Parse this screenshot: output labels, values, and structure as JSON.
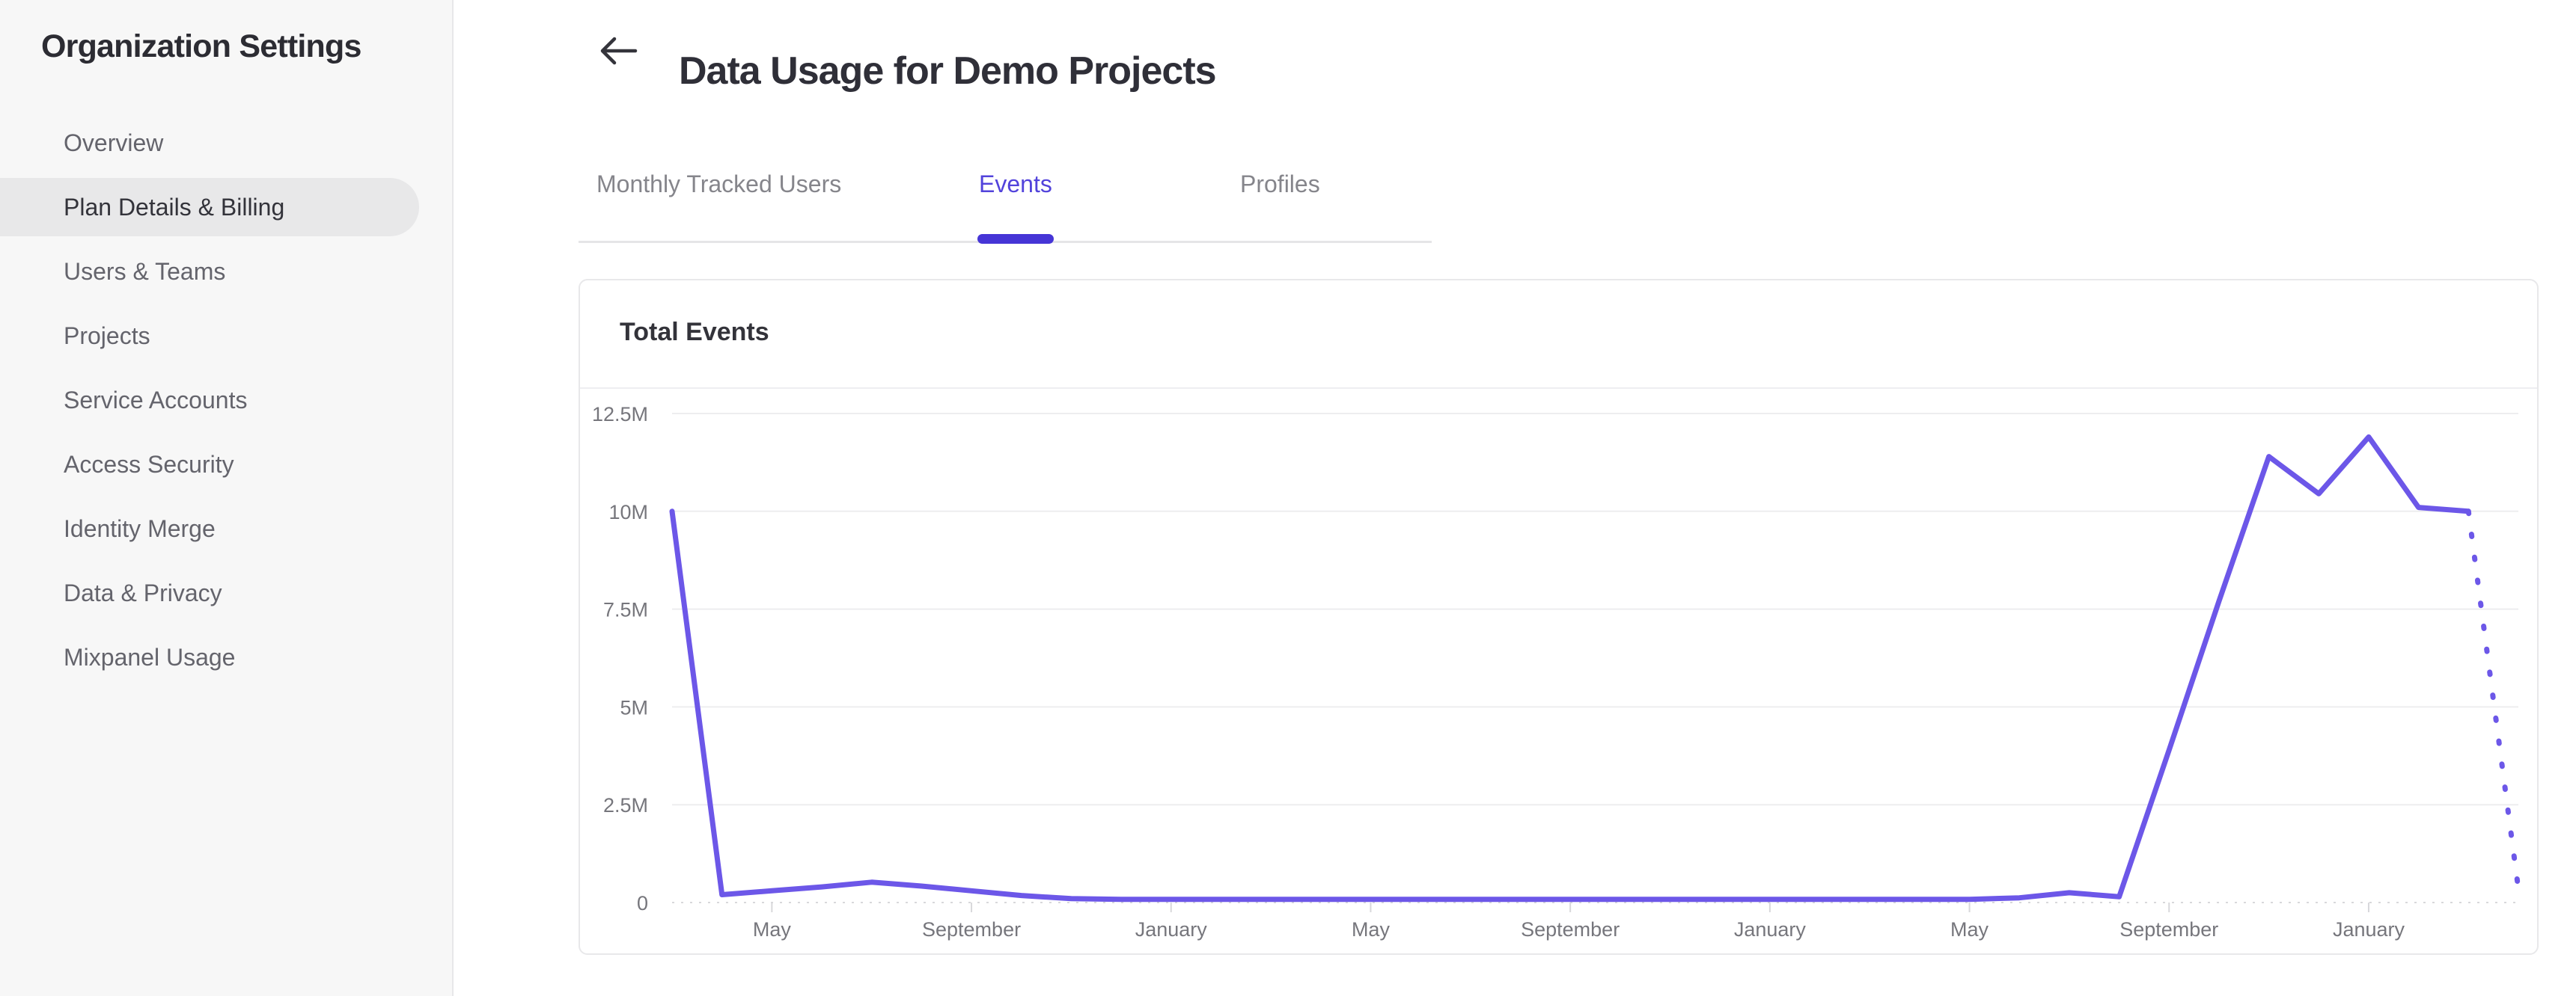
{
  "sidebar": {
    "title": "Organization Settings",
    "items": [
      {
        "label": "Overview",
        "active": false
      },
      {
        "label": "Plan Details & Billing",
        "active": true
      },
      {
        "label": "Users & Teams",
        "active": false
      },
      {
        "label": "Projects",
        "active": false
      },
      {
        "label": "Service Accounts",
        "active": false
      },
      {
        "label": "Access Security",
        "active": false
      },
      {
        "label": "Identity Merge",
        "active": false
      },
      {
        "label": "Data & Privacy",
        "active": false
      },
      {
        "label": "Mixpanel Usage",
        "active": false
      }
    ]
  },
  "header": {
    "title": "Data Usage for Demo Projects",
    "back_icon": "left-arrow-icon"
  },
  "tabs": [
    {
      "label": "Monthly Tracked Users",
      "active": false
    },
    {
      "label": "Events",
      "active": true
    },
    {
      "label": "Profiles",
      "active": false
    }
  ],
  "card": {
    "title": "Total Events"
  },
  "colors": {
    "accent_tab_text": "#5243db",
    "accent_tab_underline": "#4635d6",
    "chart_line": "#6c57e8",
    "gridline": "#ededef",
    "axis_baseline_and_ticks": "#d8d8db",
    "axis_label_text": "#76767c",
    "sidebar_selected_bg": "#e8e8e9",
    "sidebar_bg": "#f7f7f7"
  },
  "chart_data": {
    "type": "line",
    "title": "Total Events",
    "xlabel": "",
    "ylabel": "",
    "ylim_millions": [
      0,
      12.5
    ],
    "grid": true,
    "legend": "none",
    "y_ticks": [
      {
        "value_millions": 0,
        "label": "0"
      },
      {
        "value_millions": 2.5,
        "label": "2.5M"
      },
      {
        "value_millions": 5,
        "label": "5M"
      },
      {
        "value_millions": 7.5,
        "label": "7.5M"
      },
      {
        "value_millions": 10,
        "label": "10M"
      },
      {
        "value_millions": 12.5,
        "label": "12.5M"
      }
    ],
    "x_ticks": [
      {
        "month_index": 2,
        "label": "May"
      },
      {
        "month_index": 6,
        "label": "September"
      },
      {
        "month_index": 10,
        "label": "January"
      },
      {
        "month_index": 14,
        "label": "May"
      },
      {
        "month_index": 18,
        "label": "September"
      },
      {
        "month_index": 22,
        "label": "January"
      },
      {
        "month_index": 26,
        "label": "May"
      },
      {
        "month_index": 30,
        "label": "September"
      },
      {
        "month_index": 34,
        "label": "January"
      }
    ],
    "series": [
      {
        "name": "Total Events",
        "unit": "millions of events per month",
        "values_millions": [
          10,
          0.2,
          0.3,
          0.4,
          0.52,
          0.42,
          0.3,
          0.18,
          0.1,
          0.08,
          0.08,
          0.08,
          0.08,
          0.08,
          0.08,
          0.08,
          0.08,
          0.08,
          0.08,
          0.08,
          0.08,
          0.08,
          0.08,
          0.08,
          0.08,
          0.08,
          0.08,
          0.12,
          0.25,
          0.15,
          3.9,
          7.7,
          11.4,
          10.45,
          11.9,
          10.1,
          10.0,
          0.35
        ],
        "dotted_from_index": 36,
        "last_segment_style": "dotted"
      }
    ]
  }
}
